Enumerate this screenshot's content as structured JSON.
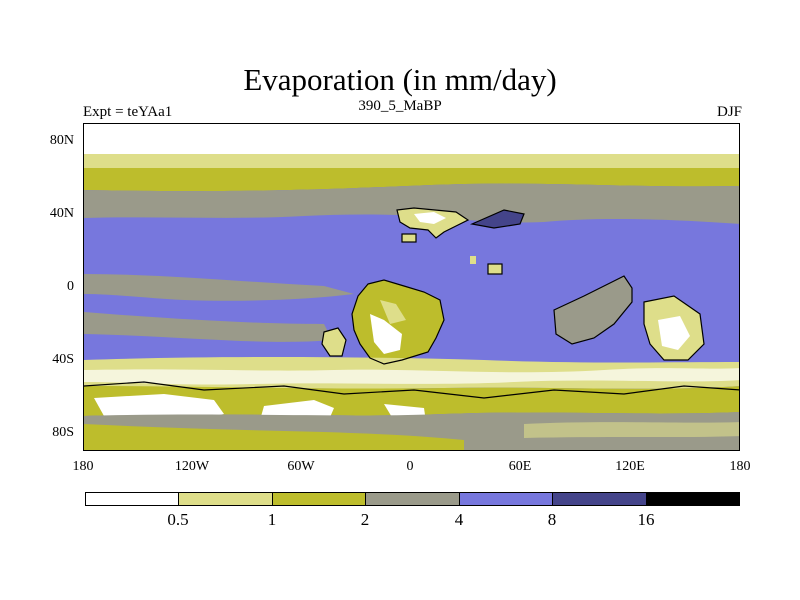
{
  "title": "Evaporation (in mm/day)",
  "subtitle_left": "Expt = teYAa1",
  "subtitle_center": "390_5_MaBP",
  "subtitle_right": "DJF",
  "lat_labels": [
    "80N",
    "40N",
    "0",
    "40S",
    "80S"
  ],
  "lon_labels": [
    "180",
    "120W",
    "60W",
    "0",
    "60E",
    "120E",
    "180"
  ],
  "colorbar": {
    "labels": [
      "0.5",
      "1",
      "2",
      "4",
      "8",
      "16"
    ],
    "colors": [
      "#ffffff",
      "#dede8a",
      "#bdbd2c",
      "#9a9a8a",
      "#7777dd",
      "#44448a",
      "#000000"
    ]
  }
}
